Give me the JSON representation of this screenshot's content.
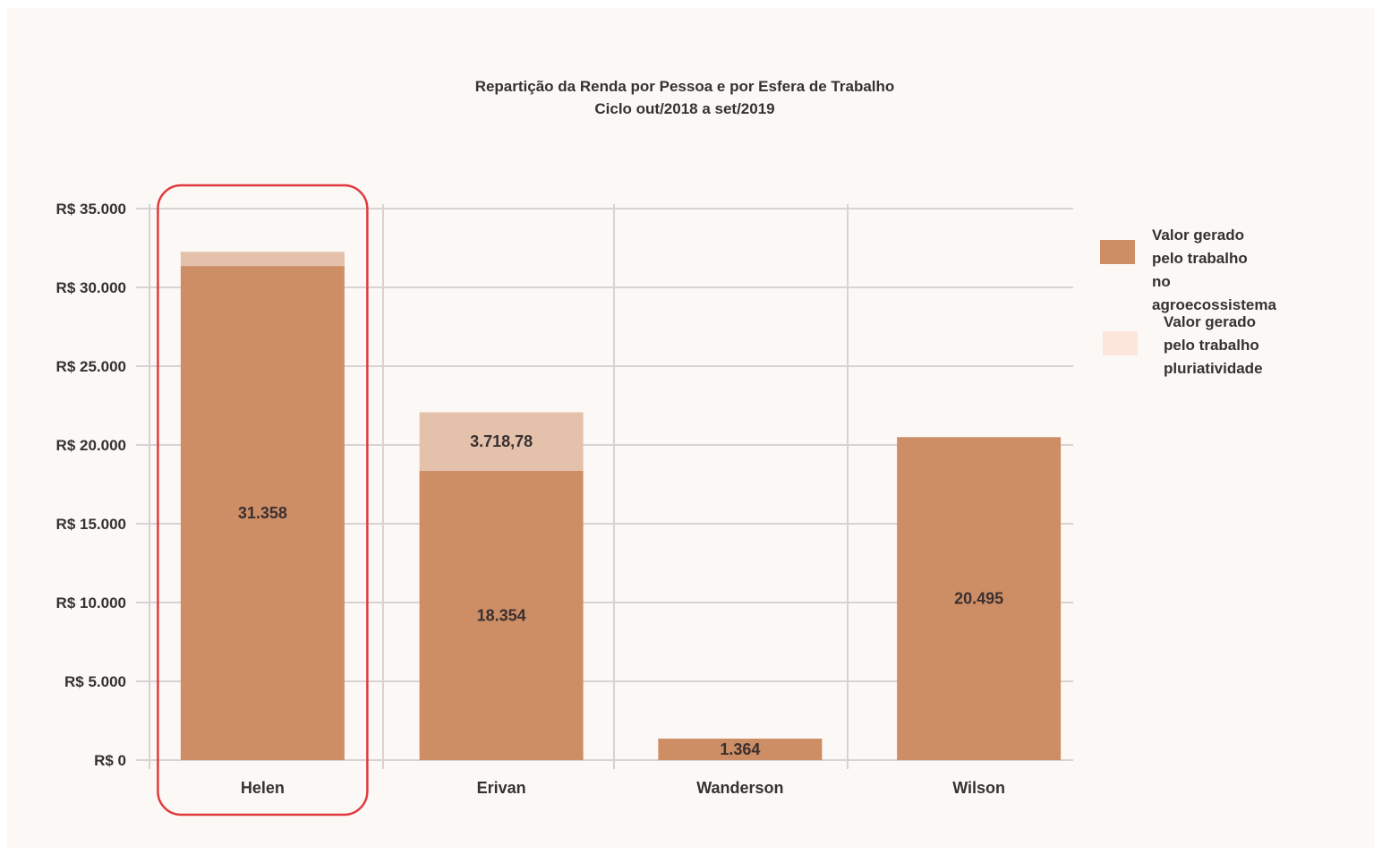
{
  "chart_data": {
    "type": "bar",
    "stacked": true,
    "title": "Repartição da Renda por Pessoa e por Esfera de Trabalho",
    "subtitle": "Ciclo out/2018 a set/2019",
    "categories": [
      "Helen",
      "Erivan",
      "Wanderson",
      "Wilson"
    ],
    "series": [
      {
        "name": "Valor gerado\npelo trabalho\nno agroecossistema",
        "values": [
          31358,
          18354,
          1364,
          20495
        ],
        "data_labels": [
          "31.358",
          "18.354",
          "1.364",
          "20.495"
        ],
        "color": "#cd8e65"
      },
      {
        "name": "Valor gerado\npelo trabalho\npluriatividade",
        "values": [
          900,
          3718.78,
          0,
          0
        ],
        "data_labels": [
          "",
          "3.718,78",
          "",
          ""
        ],
        "color": "#e4c1aa",
        "legend_color": "#fce6dc"
      }
    ],
    "ylim": [
      0,
      35000
    ],
    "yticks": [
      0,
      5000,
      10000,
      15000,
      20000,
      25000,
      30000,
      35000
    ],
    "ytick_labels": [
      "R$ 0",
      "R$ 5.000",
      "R$ 10.000",
      "R$ 15.000",
      "R$ 20.000",
      "R$ 25.000",
      "R$ 30.000",
      "R$ 35.000"
    ],
    "grid": true,
    "legend_position": "right",
    "highlighted_category": "Helen",
    "highlight_color": "#e03a3e"
  }
}
